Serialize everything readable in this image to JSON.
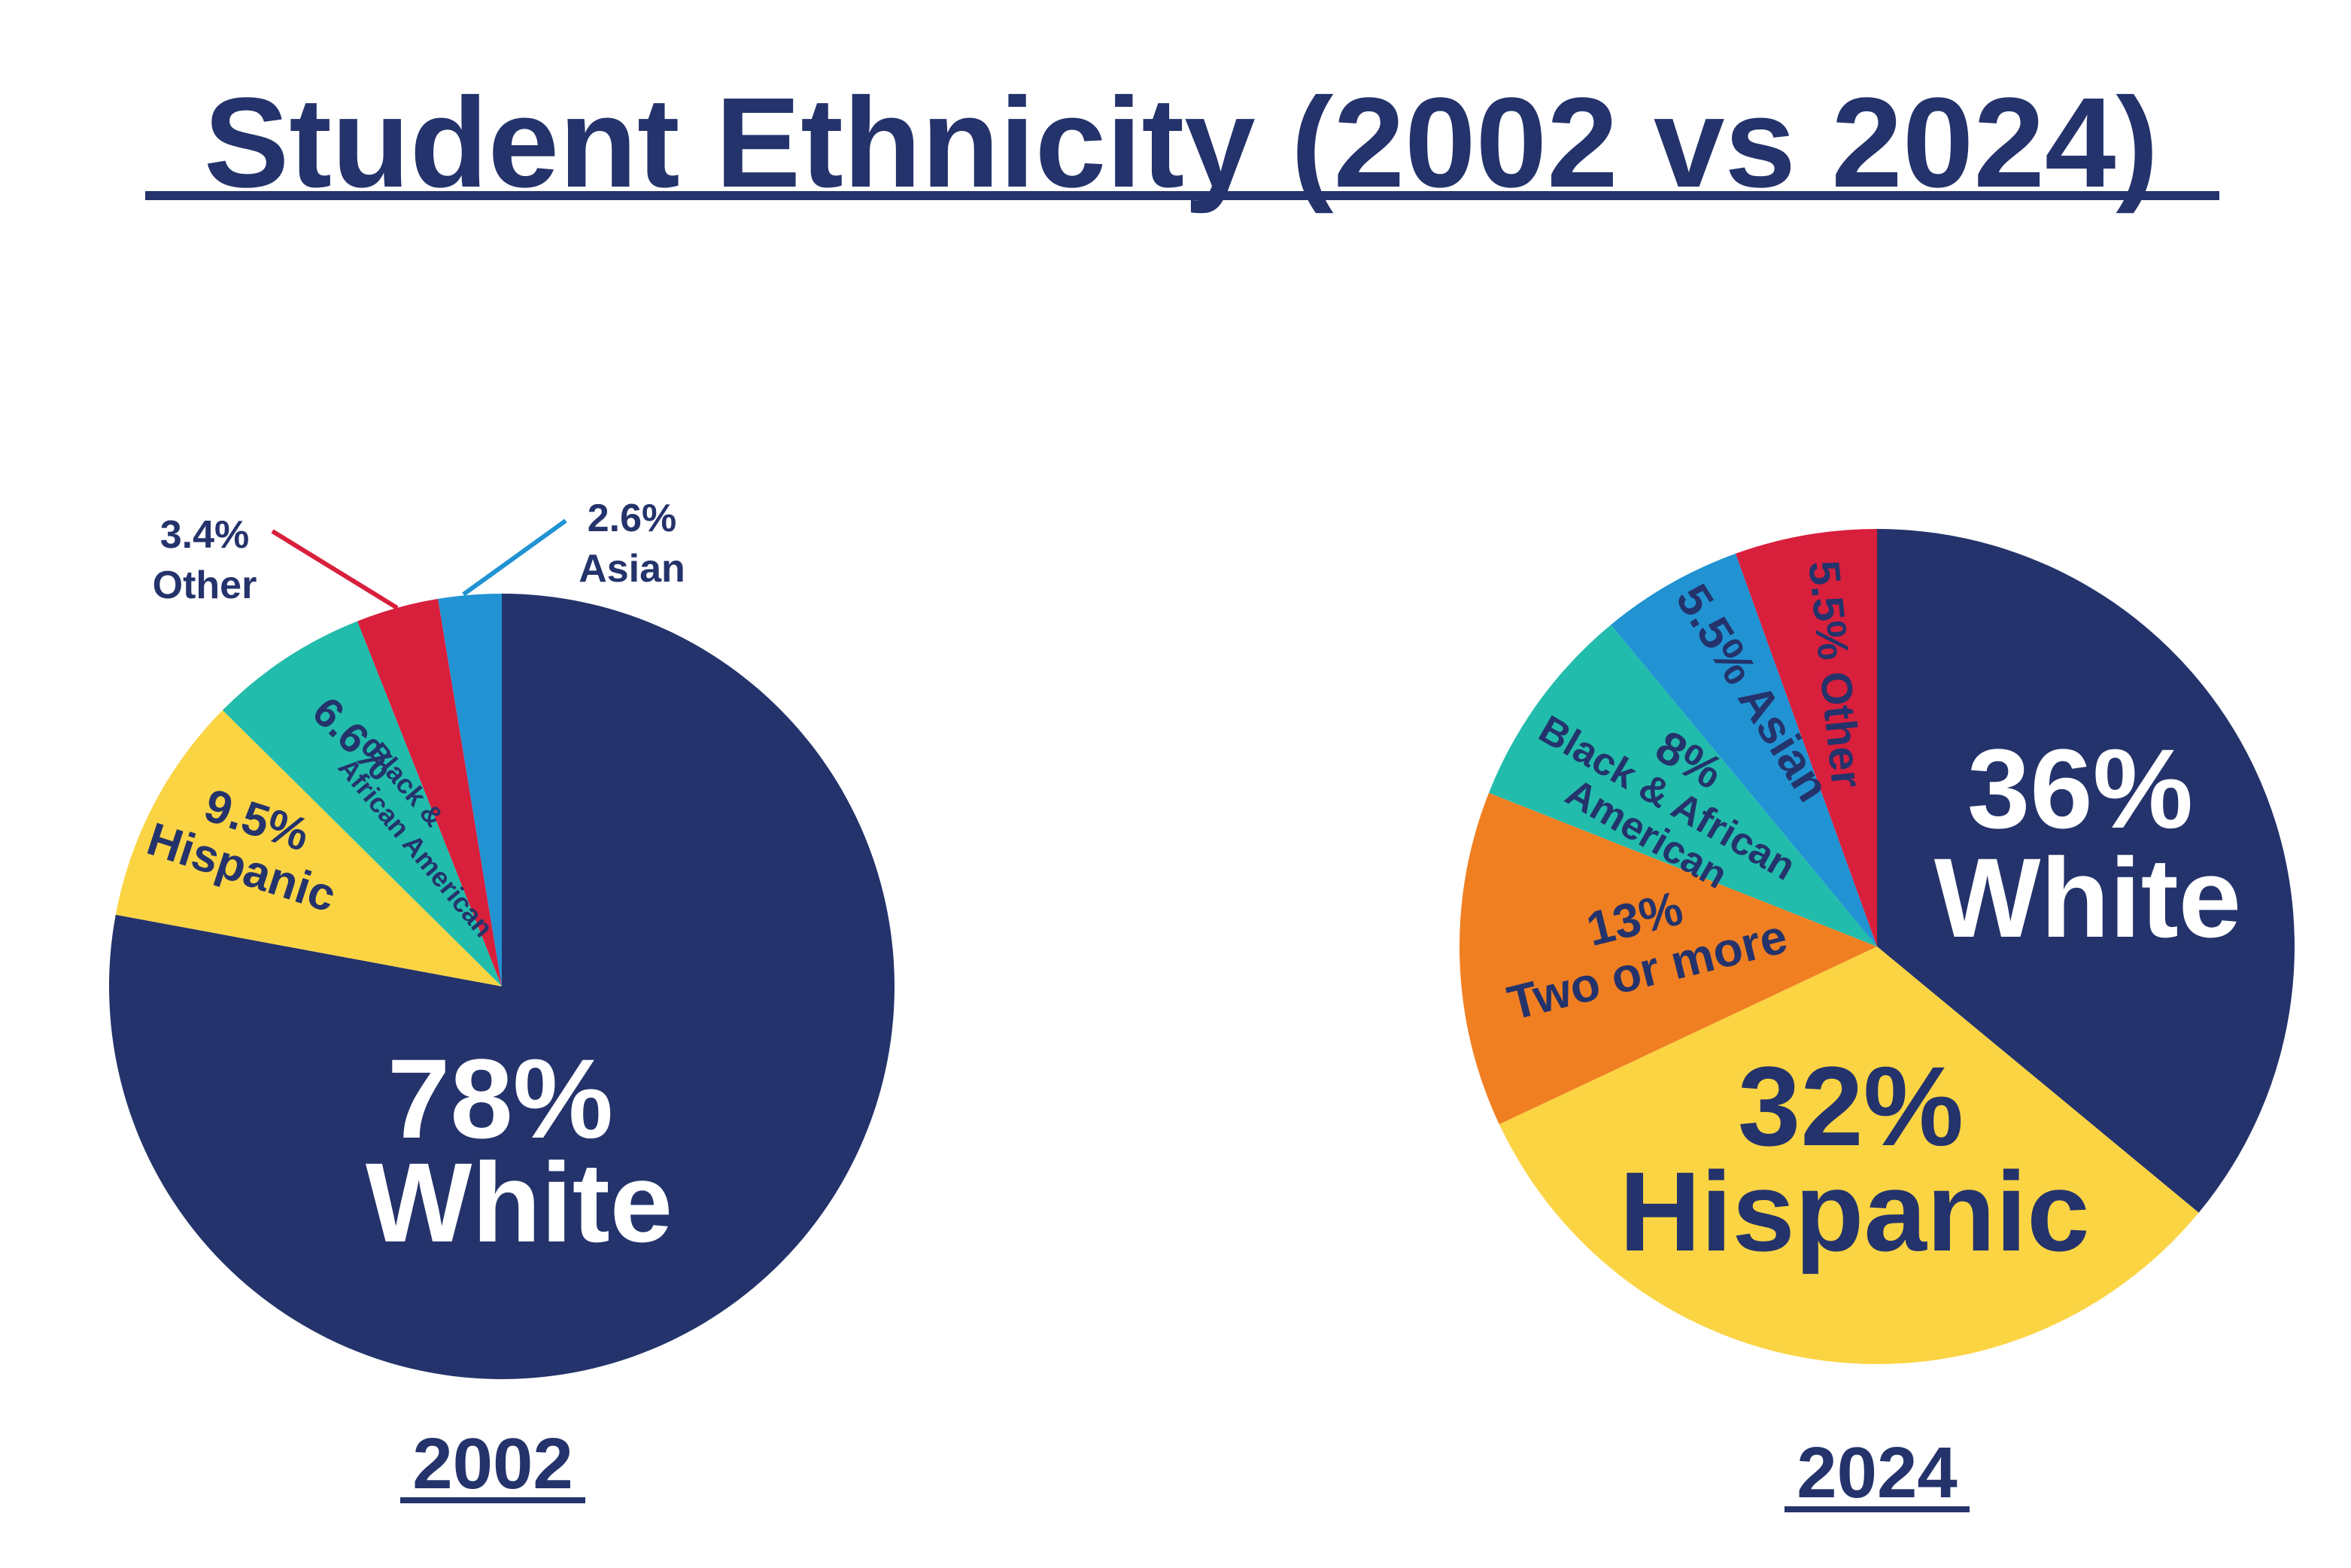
{
  "title": "Student Ethnicity (2002 vs 2024)",
  "colors": {
    "navy": "#24336b",
    "yellow": "#fbd444",
    "teal": "#22bcac",
    "red": "#d81f3c",
    "blue": "#2193d3",
    "orange": "#f07f22",
    "white_text": "#ffffff"
  },
  "chart_data": [
    {
      "type": "pie",
      "title": "2002",
      "slices": [
        {
          "name": "White",
          "value": 78,
          "label_pct": "78%",
          "label_name": "White",
          "color": "#24336b"
        },
        {
          "name": "Hispanic",
          "value": 9.5,
          "label_pct": "9.5%",
          "label_name": "Hispanic",
          "color": "#fbd444"
        },
        {
          "name": "Black & African American",
          "value": 6.6,
          "label_pct": "6.6%",
          "label_name_1": "Black &",
          "label_name_2": "African American",
          "color": "#22bcac"
        },
        {
          "name": "Other",
          "value": 3.4,
          "label_pct": "3.4%",
          "label_name": "Other",
          "color": "#d81f3c"
        },
        {
          "name": "Asian",
          "value": 2.6,
          "label_pct": "2.6%",
          "label_name": "Asian",
          "color": "#2193d3"
        }
      ]
    },
    {
      "type": "pie",
      "title": "2024",
      "slices": [
        {
          "name": "White",
          "value": 36,
          "label_pct": "36%",
          "label_name": "White",
          "color": "#24336b"
        },
        {
          "name": "Hispanic",
          "value": 32,
          "label_pct": "32%",
          "label_name": "Hispanic",
          "color": "#fbd444"
        },
        {
          "name": "Two or more",
          "value": 13,
          "label_pct": "13%",
          "label_name": "Two or more",
          "color": "#f07f22"
        },
        {
          "name": "Black & African American",
          "value": 8,
          "label_pct": "8%",
          "label_name_1": "Black & African",
          "label_name_2": "American",
          "color": "#22bcac"
        },
        {
          "name": "Asian",
          "value": 5.5,
          "label_pct": "5.5%",
          "label_name": "5.5% Asian",
          "color": "#2193d3"
        },
        {
          "name": "Other",
          "value": 5.5,
          "label_pct": "5.5%",
          "label_name": "5.5% Other",
          "color": "#d81f3c"
        }
      ]
    }
  ]
}
